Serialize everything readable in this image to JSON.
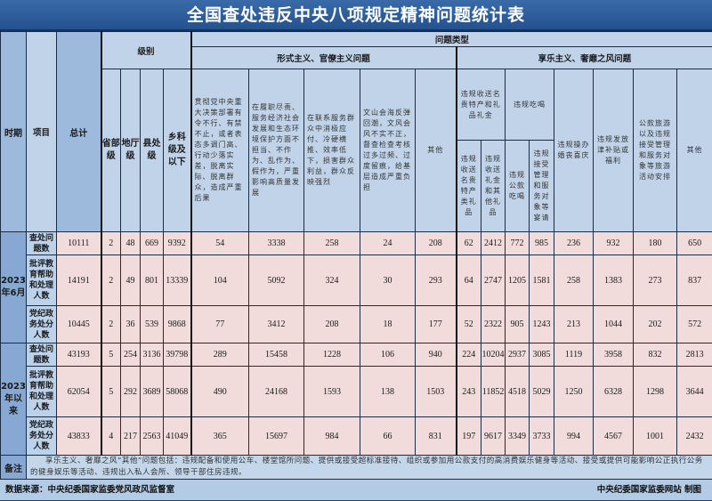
{
  "title": "全国查处违反中央八项规定精神问题统计表",
  "headers": {
    "period": "时期",
    "item": "项目",
    "total": "总计",
    "level": "级别",
    "levels": [
      "省部级",
      "地厅级",
      "县处级",
      "乡科级及以下"
    ],
    "problem_type": "问题类型",
    "formalism": "形式主义、官僚主义问题",
    "formalism_items": [
      "贯彻党中央重大决策部署有令不行、有禁不止，或者表态多调门高、行动少落实差，脱离实际、脱离群众，造成严重后果",
      "在履职尽责、服务经济社会发展和生态环境保护方面不担当、不作为、乱作为、假作为，严重影响高质量发展",
      "在联系服务群众中消极应付、冷硬横推、效率低下，损害群众利益，群众反映强烈",
      "文山会海反弹回潮，文风会风不实不正，督查检查考核过多过频、过度留痕，给基层造成严重负担",
      "其他"
    ],
    "hedonism": "享乐主义、奢靡之风问题",
    "gifts": "违规收送名贵特产和礼品礼金",
    "gifts_sub": [
      "违规收送名贵特产类礼品",
      "违规收送礼金和其他礼品"
    ],
    "dining": "违规吃喝",
    "dining_sub": [
      "违规公款吃喝",
      "违规接受管理和服务对象等宴请"
    ],
    "weddings": "违规操办婚丧喜庆",
    "allowances": "违规发放津补贴或福利",
    "travel": "公款旅游以及违规接受管理和服务对象等旅游活动安排",
    "other": "其他"
  },
  "periods": [
    {
      "label": "2023年6月",
      "rows": [
        {
          "item": "查处问题数",
          "values": [
            10111,
            2,
            48,
            669,
            9392,
            54,
            3338,
            258,
            24,
            208,
            62,
            2412,
            772,
            985,
            236,
            932,
            180,
            650
          ]
        },
        {
          "item": "批评教育帮助和处理人数",
          "values": [
            14191,
            2,
            49,
            801,
            13339,
            104,
            5092,
            324,
            30,
            293,
            64,
            2747,
            1205,
            1581,
            258,
            1383,
            273,
            837
          ]
        },
        {
          "item": "党纪政务处分人数",
          "values": [
            10445,
            2,
            36,
            539,
            9868,
            77,
            3412,
            208,
            18,
            177,
            52,
            2322,
            905,
            1243,
            213,
            1044,
            202,
            572
          ]
        }
      ]
    },
    {
      "label": "2023年以来",
      "rows": [
        {
          "item": "查处问题数",
          "values": [
            43193,
            5,
            254,
            3136,
            39798,
            289,
            15458,
            1228,
            106,
            940,
            224,
            10204,
            2937,
            3085,
            1119,
            3958,
            832,
            2813
          ]
        },
        {
          "item": "批评教育帮助和处理人数",
          "values": [
            62054,
            5,
            292,
            3689,
            58068,
            490,
            24168,
            1593,
            138,
            1503,
            243,
            11852,
            4518,
            5029,
            1250,
            6328,
            1298,
            3644
          ]
        },
        {
          "item": "党纪政务处分人数",
          "values": [
            43833,
            4,
            217,
            2563,
            41049,
            365,
            15697,
            984,
            66,
            831,
            197,
            9617,
            3349,
            3733,
            994,
            4567,
            1001,
            2432
          ]
        }
      ]
    }
  ],
  "notes": {
    "label": "备注",
    "text": "享乐主义、奢靡之风“其他”问题包括：违规配备和使用公车、楼堂馆所问题、提供或接受超标准接待、组织或参加用公款支付的高消费娱乐健身等活动、接受或提供可能影响公正执行公务的健身娱乐等活动、违规出入私人会所、领导干部住房违规。"
  },
  "footer": {
    "source": "数据来源：中央纪委国家监委党风政风监督室",
    "credit": "中央纪委国家监委网站 制图"
  },
  "colors": {
    "title_bar": "#24528f",
    "header": "#c0d3e9",
    "data_cell": "#f1dcdb",
    "period": "#86a8d2"
  }
}
